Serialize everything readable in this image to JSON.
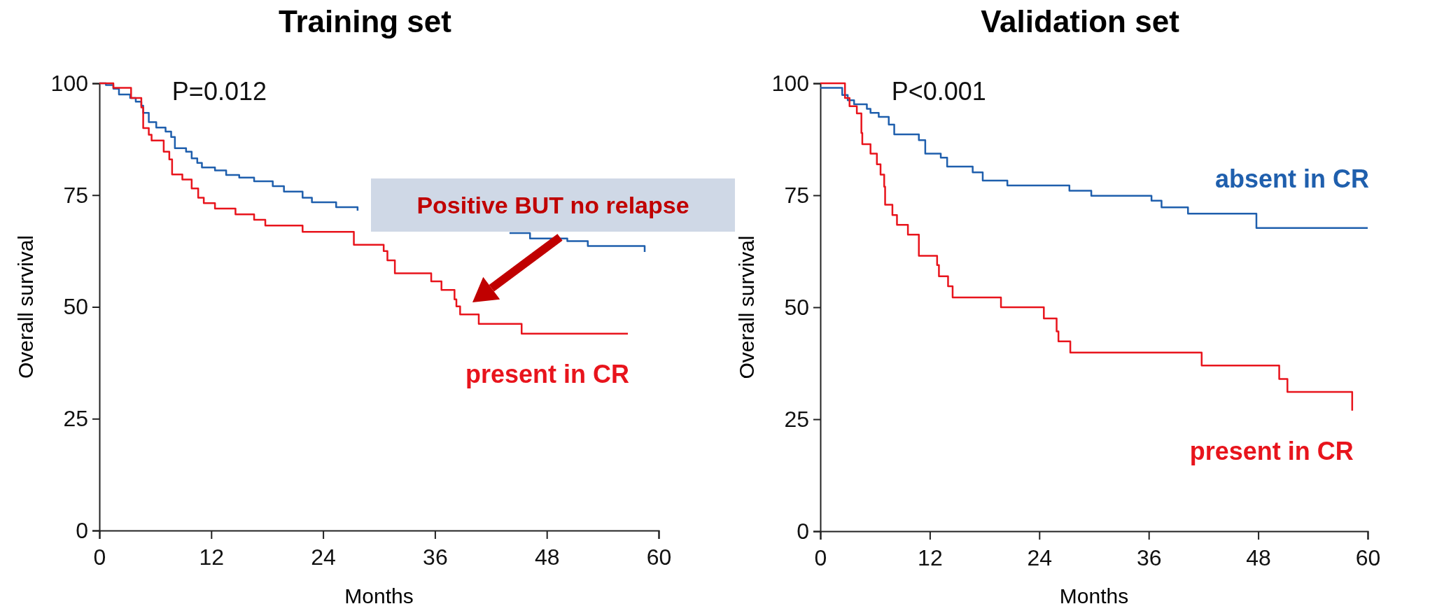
{
  "chart_data": [
    {
      "type": "step",
      "title": "Training set",
      "xlabel": "Months",
      "ylabel": "Overall survival",
      "xlim": [
        0,
        60
      ],
      "xticks": [
        0,
        12,
        24,
        36,
        48,
        60
      ],
      "ylim": [
        0,
        100
      ],
      "yticks": [
        0,
        25,
        50,
        75,
        100
      ],
      "annotations": [
        "P=0.012",
        "Positive BUT no relapse"
      ],
      "series": [
        {
          "color": "#1f5fad",
          "x": [
            0,
            0.7,
            1.5,
            2.1,
            3.3,
            3.9,
            4.5,
            4.7,
            5.3,
            6.1,
            7.1,
            7.7,
            8.1,
            9.3,
            9.9,
            10.5,
            11.0,
            12.4,
            13.6,
            15.0,
            16.6,
            18.6,
            19.8,
            21.8,
            22.8,
            25.4,
            27.7,
            28.5,
            44.0,
            46.2,
            50.2,
            52.4,
            58.5
          ],
          "values": [
            100,
            99.6,
            98.8,
            97.5,
            96.7,
            95.9,
            95,
            93.4,
            91.3,
            90.1,
            89.2,
            88,
            85.5,
            84.7,
            83.2,
            82.2,
            81.2,
            80.5,
            79.5,
            78.9,
            78.1,
            77,
            75.8,
            74.4,
            73.4,
            72.3,
            71.5,
            null,
            66.5,
            65.3,
            64.7,
            63.6,
            62.3
          ]
        },
        {
          "name": "present in CR",
          "color": "#e8141c",
          "x": [
            0,
            1.5,
            3.4,
            4.5,
            4.7,
            5.3,
            5.6,
            6.9,
            7.5,
            7.8,
            8.9,
            9.9,
            10.6,
            11.2,
            12.4,
            14.6,
            16.6,
            17.8,
            21.8,
            27.3,
            30.5,
            30.9,
            31.7,
            35.6,
            36.7,
            38.1,
            38.3,
            38.7,
            40.7,
            45.3,
            56.7
          ],
          "values": [
            100,
            99,
            96.7,
            94.6,
            90,
            88.5,
            87.2,
            84.7,
            83,
            79.6,
            78.5,
            76.5,
            74.4,
            73.2,
            72,
            70.7,
            69.5,
            68.2,
            66.8,
            63.9,
            62.5,
            60.4,
            57.5,
            55.7,
            53.8,
            51.7,
            50.1,
            48.3,
            46.2,
            44,
            44
          ]
        }
      ]
    },
    {
      "type": "step",
      "title": "Validation set",
      "xlabel": "Months",
      "ylabel": "Overall survival",
      "xlim": [
        0,
        60
      ],
      "xticks": [
        0,
        12,
        24,
        36,
        48,
        60
      ],
      "ylim": [
        0,
        100
      ],
      "yticks": [
        0,
        25,
        50,
        75,
        100
      ],
      "annotations": [
        "P<0.001"
      ],
      "series": [
        {
          "name": "absent in CR",
          "color": "#1f5fad",
          "x": [
            0,
            2.4,
            3.0,
            3.7,
            5.1,
            5.5,
            6.4,
            7.5,
            8.1,
            10.8,
            11.5,
            13.2,
            13.9,
            16.7,
            17.8,
            20.5,
            27.3,
            29.7,
            36.3,
            37.4,
            40.3,
            47.8,
            60
          ],
          "values": [
            99,
            97.4,
            96.2,
            95.3,
            94.3,
            93.4,
            92.5,
            90.8,
            88.6,
            87.3,
            84.3,
            83.4,
            81.4,
            80.1,
            78.3,
            77.2,
            76,
            74.9,
            73.8,
            72.3,
            70.9,
            67.7,
            67.7
          ]
        },
        {
          "name": "present in CR",
          "color": "#e8141c",
          "x": [
            0,
            2.7,
            3.2,
            4.0,
            4.5,
            4.6,
            5.5,
            6.2,
            6.6,
            7.0,
            7.1,
            7.9,
            8.4,
            9.6,
            10.8,
            12.8,
            13.0,
            14.0,
            14.5,
            19.8,
            24.5,
            25.9,
            26.1,
            27.4,
            41.8,
            50.3,
            51.2,
            58.3
          ],
          "values": [
            100,
            96.7,
            94.9,
            93.3,
            88.9,
            86.4,
            84.3,
            81.9,
            79.6,
            76.9,
            72.9,
            70.6,
            68.4,
            66.2,
            61.5,
            59.4,
            56.9,
            54.7,
            52.2,
            50,
            47.5,
            44.6,
            42.4,
            39.9,
            37,
            34,
            31.1,
            26.9
          ]
        }
      ]
    }
  ]
}
